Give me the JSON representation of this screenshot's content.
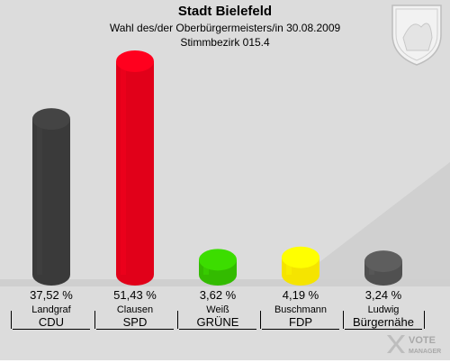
{
  "header": {
    "title": "Stadt Bielefeld",
    "subtitle": "Wahl des/der Oberbürgermeisters/in 30.08.2009",
    "district": "Stimmbezirk 015.4"
  },
  "brand": {
    "line1": "VOTE",
    "line2": "MANAGER"
  },
  "chart_data": {
    "type": "bar",
    "ylim": [
      0,
      55
    ],
    "categories": [
      "CDU",
      "SPD",
      "GRÜNE",
      "FDP",
      "Bürgernähe"
    ],
    "series": [
      {
        "values": [
          37.52,
          51.43,
          3.62,
          4.19,
          3.24
        ],
        "labels": [
          "37,52 %",
          "51,43 %",
          "3,62 %",
          "4,19 %",
          "3,24 %"
        ],
        "candidates": [
          "Landgraf",
          "Clausen",
          "Weiß",
          "Buschmann",
          "Ludwig"
        ],
        "colors": [
          "#3a3a3a",
          "#e10019",
          "#33bb00",
          "#f5e400",
          "#505050"
        ]
      }
    ]
  }
}
